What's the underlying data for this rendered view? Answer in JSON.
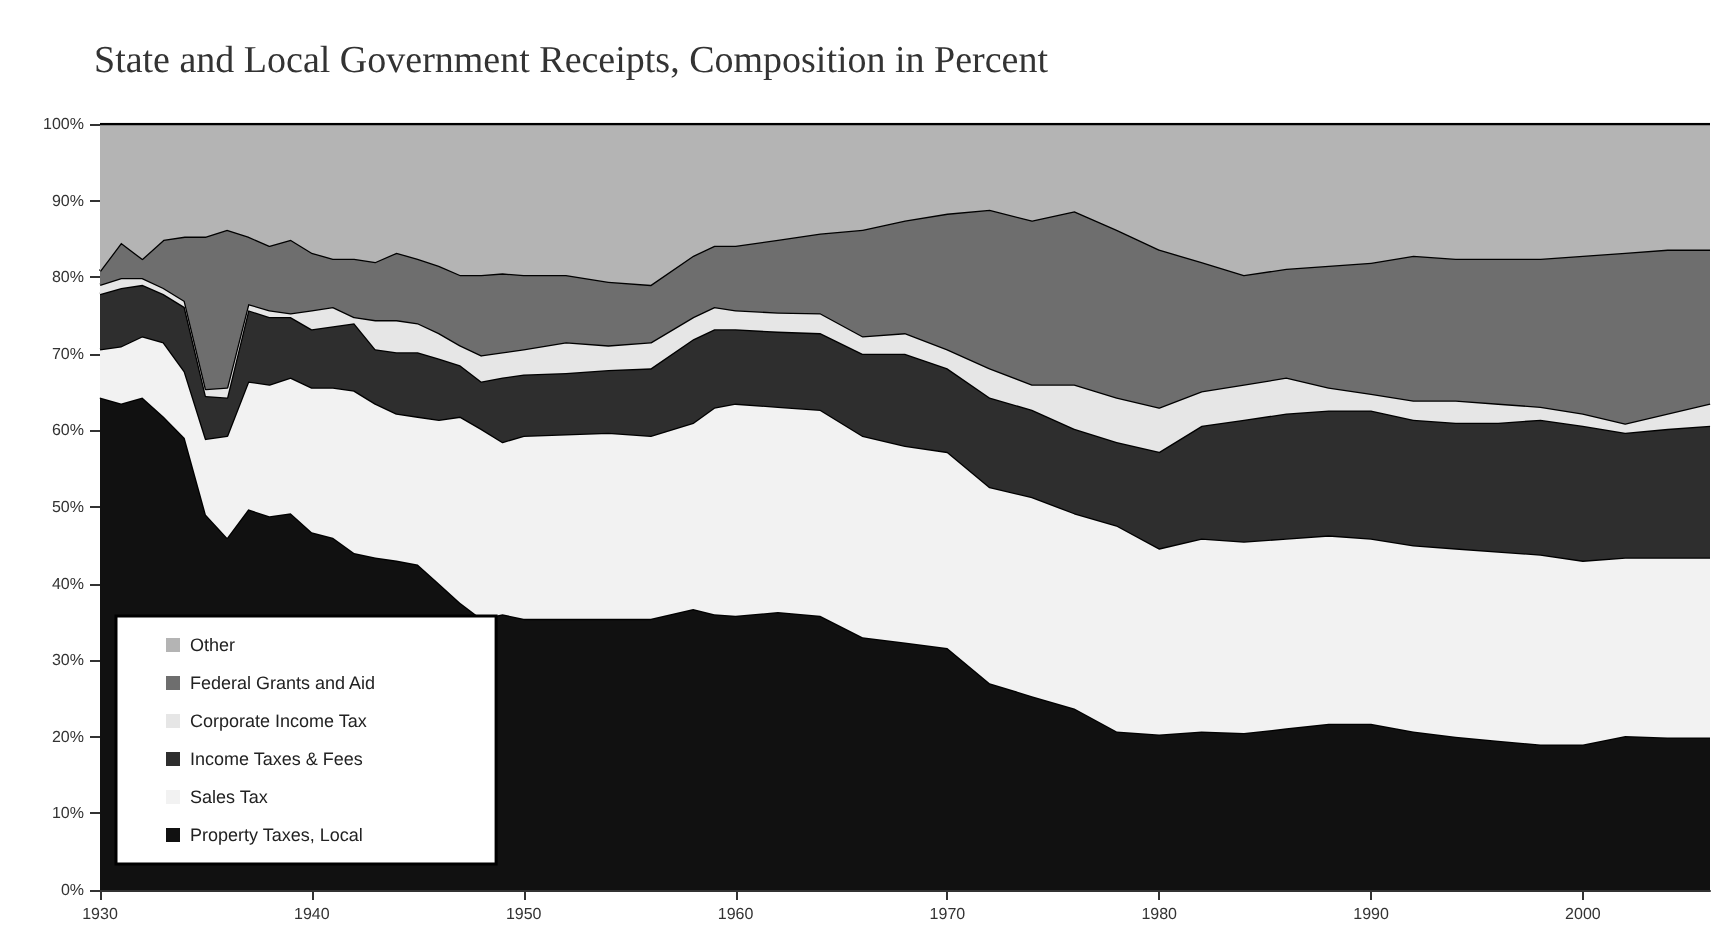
{
  "chart_data": {
    "type": "area",
    "title": "State and Local Government Receipts, Composition in Percent",
    "stacked": true,
    "x": [
      1930,
      1931,
      1932,
      1933,
      1934,
      1935,
      1936,
      1937,
      1938,
      1939,
      1940,
      1941,
      1942,
      1943,
      1944,
      1945,
      1946,
      1947,
      1948,
      1949,
      1950,
      1952,
      1954,
      1956,
      1958,
      1959,
      1960,
      1962,
      1964,
      1966,
      1968,
      1970,
      1972,
      1974,
      1976,
      1978,
      1980,
      1982,
      1984,
      1986,
      1988,
      1990,
      1992,
      1994,
      1996,
      1998,
      2000,
      2002,
      2004,
      2006
    ],
    "series": [
      {
        "name": "Property Taxes, Local",
        "color": "#111111",
        "values": [
          64.3,
          63.5,
          64.3,
          61.8,
          59,
          49,
          46,
          49.7,
          48.8,
          49.2,
          46.7,
          46,
          44,
          43.4,
          43,
          42.5,
          40,
          37.5,
          35.4,
          36,
          35.4,
          35.4,
          35.4,
          35.4,
          36.7,
          36,
          35.8,
          36.3,
          35.8,
          33,
          32.3,
          31.6,
          27,
          25.3,
          23.7,
          20.7,
          20.3,
          20.7,
          20.5,
          21.1,
          21.7,
          21.7,
          20.7,
          20,
          19.5,
          19,
          19,
          20.1,
          19.9,
          19.9
        ]
      },
      {
        "name": "Sales Tax",
        "color": "#f2f2f2",
        "values": [
          6.3,
          7.5,
          8.0,
          9.7,
          8.7,
          9.9,
          13.3,
          16.7,
          17.2,
          17.7,
          18.9,
          19.6,
          21.2,
          20.1,
          19.2,
          19.3,
          21.4,
          24.3,
          24.8,
          22.5,
          23.9,
          24.1,
          24.3,
          23.9,
          24.3,
          27,
          27.7,
          26.8,
          26.9,
          26.3,
          25.7,
          25.6,
          25.6,
          26,
          25.5,
          26.9,
          24.3,
          25.2,
          25,
          24.8,
          24.6,
          24.2,
          24.3,
          24.6,
          24.7,
          24.8,
          24,
          23.3,
          23.5,
          23.5
        ]
      },
      {
        "name": "Income Taxes & Fees",
        "color": "#2e2e2e",
        "values": [
          7.2,
          7.6,
          6.7,
          6.3,
          8.4,
          5.6,
          5.0,
          9.3,
          8.8,
          7.9,
          7.6,
          8.0,
          8.8,
          7.1,
          8.0,
          8.4,
          8.0,
          6.7,
          6.2,
          8.4,
          8.0,
          8.0,
          8.2,
          8.8,
          10.9,
          10.2,
          9.7,
          9.8,
          10.0,
          10.7,
          12.0,
          10.9,
          11.7,
          11.4,
          11.0,
          10.9,
          12.6,
          14.7,
          15.9,
          16.3,
          16.3,
          16.7,
          16.4,
          16.4,
          16.8,
          17.6,
          17.6,
          16.3,
          16.8,
          17.2
        ]
      },
      {
        "name": "Corporate Income Tax",
        "color": "#e6e6e6",
        "values": [
          1.2,
          1.3,
          0.9,
          0.8,
          0.8,
          0.9,
          1.3,
          0.8,
          0.9,
          0.5,
          2.5,
          2.5,
          0.8,
          3.8,
          4.2,
          3.8,
          3.3,
          2.6,
          3.4,
          3.3,
          3.3,
          4.0,
          3.2,
          3.4,
          2.9,
          2.9,
          2.5,
          2.5,
          2.6,
          2.3,
          2.7,
          2.5,
          3.8,
          3.3,
          5.8,
          5.8,
          5.8,
          4.5,
          4.6,
          4.7,
          3.0,
          2.2,
          2.5,
          2.9,
          2.5,
          1.7,
          1.6,
          1.2,
          2.0,
          2.9
        ]
      },
      {
        "name": "Federal Grants and Aid",
        "color": "#6e6e6e",
        "values": [
          1.8,
          4.6,
          2.5,
          6.3,
          8.4,
          19.9,
          20.6,
          8.8,
          8.4,
          9.6,
          7.5,
          6.3,
          7.6,
          7.6,
          8.8,
          8.4,
          8.8,
          9.2,
          10.5,
          10.3,
          9.7,
          8.8,
          8.3,
          7.5,
          8.0,
          8.0,
          8.4,
          9.5,
          10.4,
          13.9,
          14.7,
          17.7,
          20.7,
          21.4,
          22.6,
          21.9,
          20.6,
          16.9,
          14.3,
          14.2,
          15.9,
          17.1,
          18.9,
          18.5,
          18.9,
          19.3,
          20.6,
          22.3,
          21.4,
          20.1
        ]
      },
      {
        "name": "Other",
        "color": "#b4b4b4",
        "values": [
          19.2,
          15.5,
          17.6,
          15.1,
          14.7,
          14.7,
          13.8,
          14.7,
          15.9,
          15.1,
          16.8,
          17.6,
          17.6,
          18,
          16.8,
          17.6,
          18.5,
          19.7,
          19.7,
          19.5,
          19.7,
          19.7,
          20.6,
          21,
          17.2,
          15.9,
          15.9,
          15.1,
          14.3,
          13.8,
          12.6,
          11.7,
          11.2,
          12.6,
          11.4,
          13.8,
          16.4,
          18,
          19.7,
          18.9,
          18.5,
          18.1,
          17.2,
          17.6,
          17.6,
          17.6,
          17.2,
          16.8,
          16.4,
          16.4
        ]
      }
    ],
    "xlim": [
      1930,
      2006
    ],
    "xticks": [
      1930,
      1940,
      1950,
      1960,
      1970,
      1980,
      1990,
      2000
    ],
    "ylim": [
      0,
      100
    ],
    "yticks": [
      {
        "value": 0,
        "label": "0%"
      },
      {
        "value": 10,
        "label": "10%"
      },
      {
        "value": 20,
        "label": "20%"
      },
      {
        "value": 30,
        "label": "30%"
      },
      {
        "value": 40,
        "label": "40%"
      },
      {
        "value": 50,
        "label": "50%"
      },
      {
        "value": 60,
        "label": "60%"
      },
      {
        "value": 70,
        "label": "70%"
      },
      {
        "value": 80,
        "label": "80%"
      },
      {
        "value": 90,
        "label": "90%"
      },
      {
        "value": 100,
        "label": "100%"
      }
    ],
    "legend": "bottom left"
  }
}
